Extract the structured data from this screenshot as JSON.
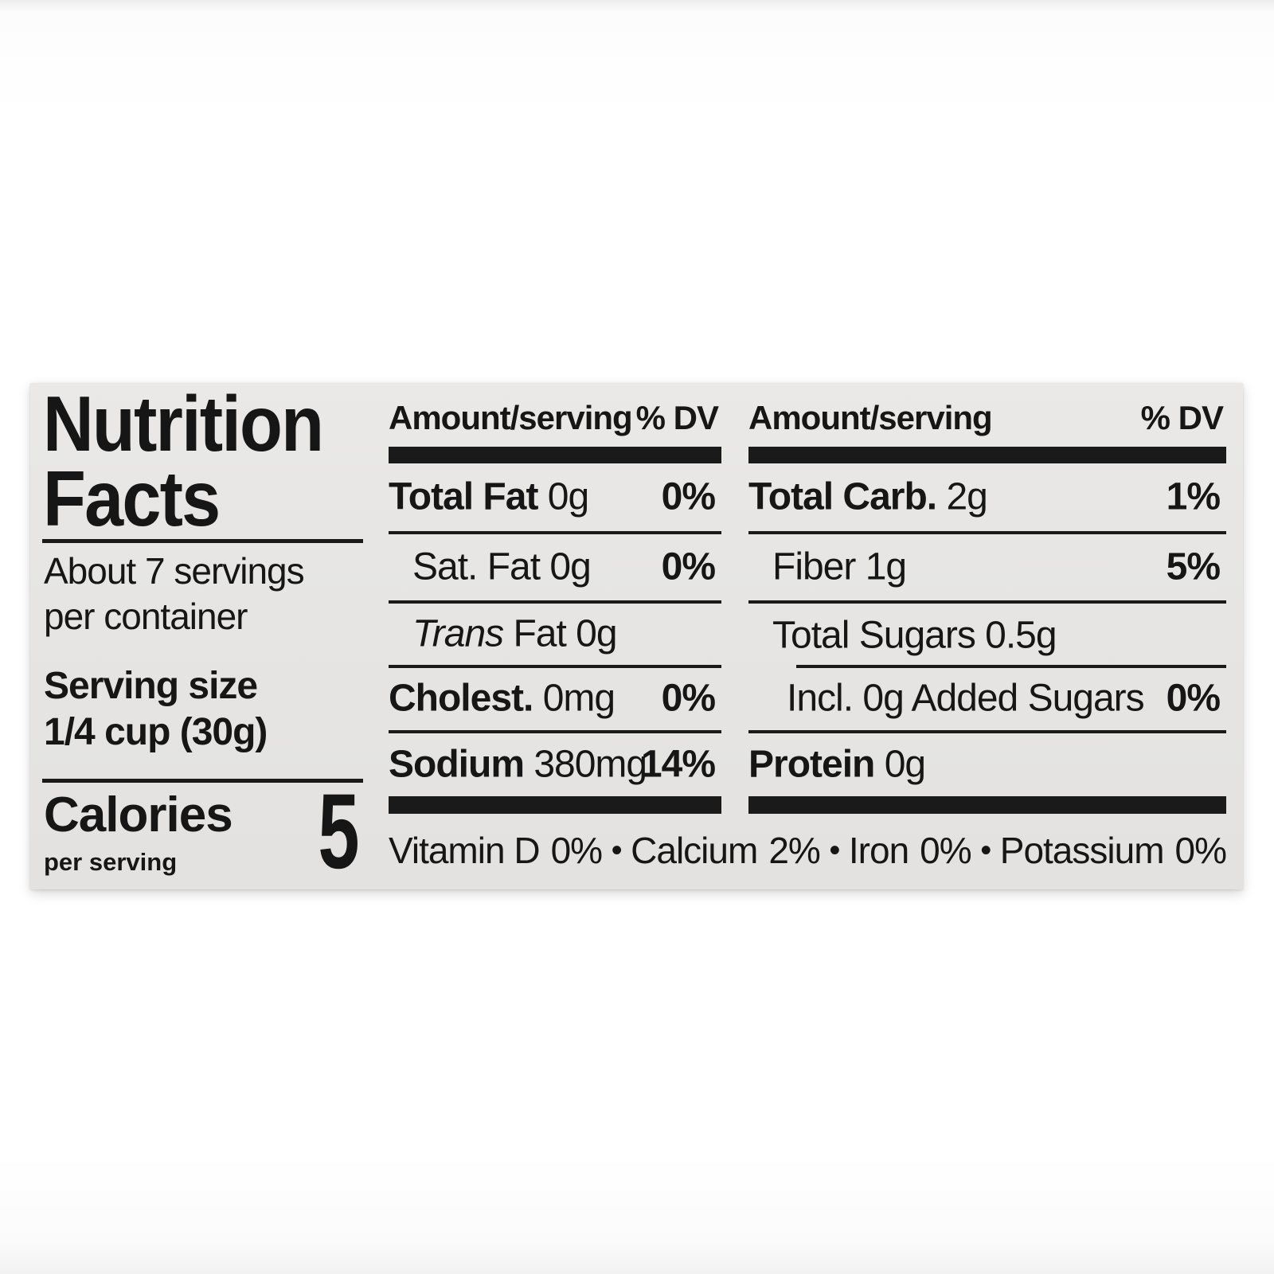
{
  "nutrition_label": {
    "title_lines": [
      "Nutrition",
      "Facts"
    ],
    "servings_line1": "About 7 servings",
    "servings_line2": "per container",
    "serving_size_label": "Serving size",
    "serving_size_value": "1/4 cup (30g)",
    "calories_label": "Calories",
    "calories_unit": "per serving",
    "calories_value": "5",
    "column_header_amount": "Amount/serving",
    "column_header_dv": "% DV",
    "columns": [
      {
        "rows": [
          {
            "bold": "Total Fat",
            "rest": " 0g",
            "dv": "0%"
          },
          {
            "rest": "Sat. Fat 0g",
            "dv": "0%"
          },
          {
            "italic": "Trans",
            "rest": " Fat 0g",
            "dv": ""
          },
          {
            "bold": "Cholest.",
            "rest": " 0mg",
            "dv": "0%"
          },
          {
            "bold": "Sodium",
            "rest": " 380mg",
            "dv": "14%"
          }
        ]
      },
      {
        "rows": [
          {
            "bold": "Total Carb.",
            "rest": " 2g",
            "dv": "1%"
          },
          {
            "rest": "Fiber 1g",
            "dv": "5%"
          },
          {
            "rest": "Total Sugars 0.5g",
            "dv": ""
          },
          {
            "rest": "Incl. 0g Added Sugars",
            "dv": "0%"
          },
          {
            "bold": "Protein",
            "rest": " 0g",
            "dv": ""
          }
        ]
      }
    ],
    "micronutrients": [
      {
        "name": "Vitamin D",
        "value": "0%"
      },
      {
        "name": "Calcium",
        "value": "2%"
      },
      {
        "name": "Iron",
        "value": "0%"
      },
      {
        "name": "Potassium",
        "value": "0%"
      }
    ],
    "bullet": "•",
    "colors": {
      "label_bg": "#e7e6e4",
      "text": "#161616",
      "bar": "#1a1a1a"
    }
  }
}
